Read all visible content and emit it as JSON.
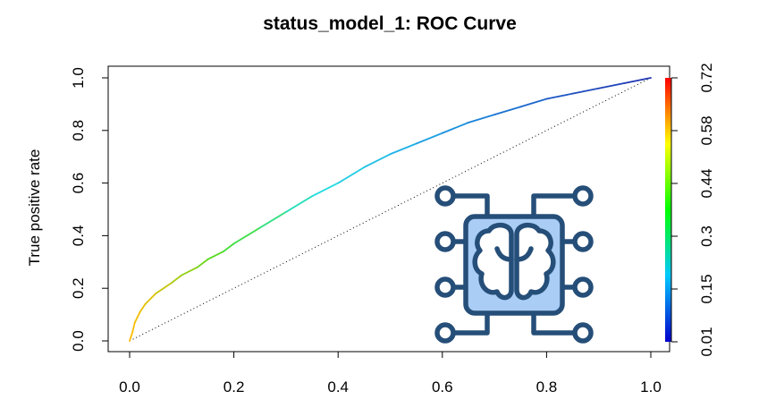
{
  "chart_data": {
    "type": "line",
    "title": "status_model_1: ROC Curve",
    "xlabel": "",
    "ylabel": "True positive rate",
    "xlim": [
      0,
      1
    ],
    "ylim": [
      0,
      1
    ],
    "x_ticks": [
      "0.0",
      "0.2",
      "0.4",
      "0.6",
      "0.8",
      "1.0"
    ],
    "y_ticks": [
      "0.0",
      "0.2",
      "0.4",
      "0.6",
      "0.8",
      "1.0"
    ],
    "grid": false,
    "series": [
      {
        "x": [
          0.0,
          0.005,
          0.01,
          0.02,
          0.03,
          0.05,
          0.08,
          0.1,
          0.13,
          0.15,
          0.18,
          0.2,
          0.25,
          0.3,
          0.35,
          0.4,
          0.45,
          0.5,
          0.55,
          0.6,
          0.65,
          0.7,
          0.75,
          0.8,
          0.85,
          0.9,
          0.95,
          1.0
        ],
        "y": [
          0.0,
          0.03,
          0.07,
          0.11,
          0.14,
          0.18,
          0.22,
          0.25,
          0.28,
          0.31,
          0.34,
          0.37,
          0.43,
          0.49,
          0.55,
          0.6,
          0.66,
          0.71,
          0.75,
          0.79,
          0.83,
          0.86,
          0.89,
          0.92,
          0.94,
          0.96,
          0.98,
          1.0
        ]
      }
    ],
    "reference_line": {
      "x": [
        0,
        1
      ],
      "y": [
        0,
        1
      ],
      "style": "dotted"
    },
    "colorbar": {
      "ticks": [
        "0.01",
        "0.15",
        "0.3",
        "0.44",
        "0.58",
        "0.72"
      ],
      "range": [
        0.01,
        0.72
      ],
      "colors": [
        "#0000cc",
        "#00c8ff",
        "#00ff00",
        "#ffff00",
        "#ff0000"
      ],
      "placement": "right"
    },
    "line_colors": [
      "#ffbb00",
      "#44dd22",
      "#22e0e0",
      "#1fb0e8",
      "#1a7cd6",
      "#1f4fbf",
      "#2030b0"
    ]
  },
  "logo": {
    "icon": "brain-chip-icon",
    "colors": {
      "stroke": "#254e78",
      "fill": "#a9cdf5",
      "white": "#ffffff"
    }
  }
}
